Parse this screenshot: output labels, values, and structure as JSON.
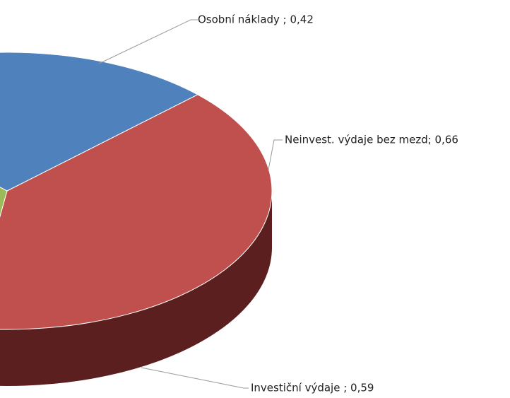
{
  "chart_data": {
    "type": "pie3d",
    "values": [
      0.42,
      0.66,
      0.59
    ],
    "value_labels": [
      "Osobní náklady ; 0,42",
      "Neinvest. výdaje bez mezd; 0,66",
      "Investiční výdaje ; 0,59"
    ],
    "colors": [
      "#4f81bd",
      "#c0504d",
      "#9bbb59"
    ],
    "side_colors": [
      "#2c4a70",
      "#5a1f1e",
      "#3e5020"
    ]
  }
}
